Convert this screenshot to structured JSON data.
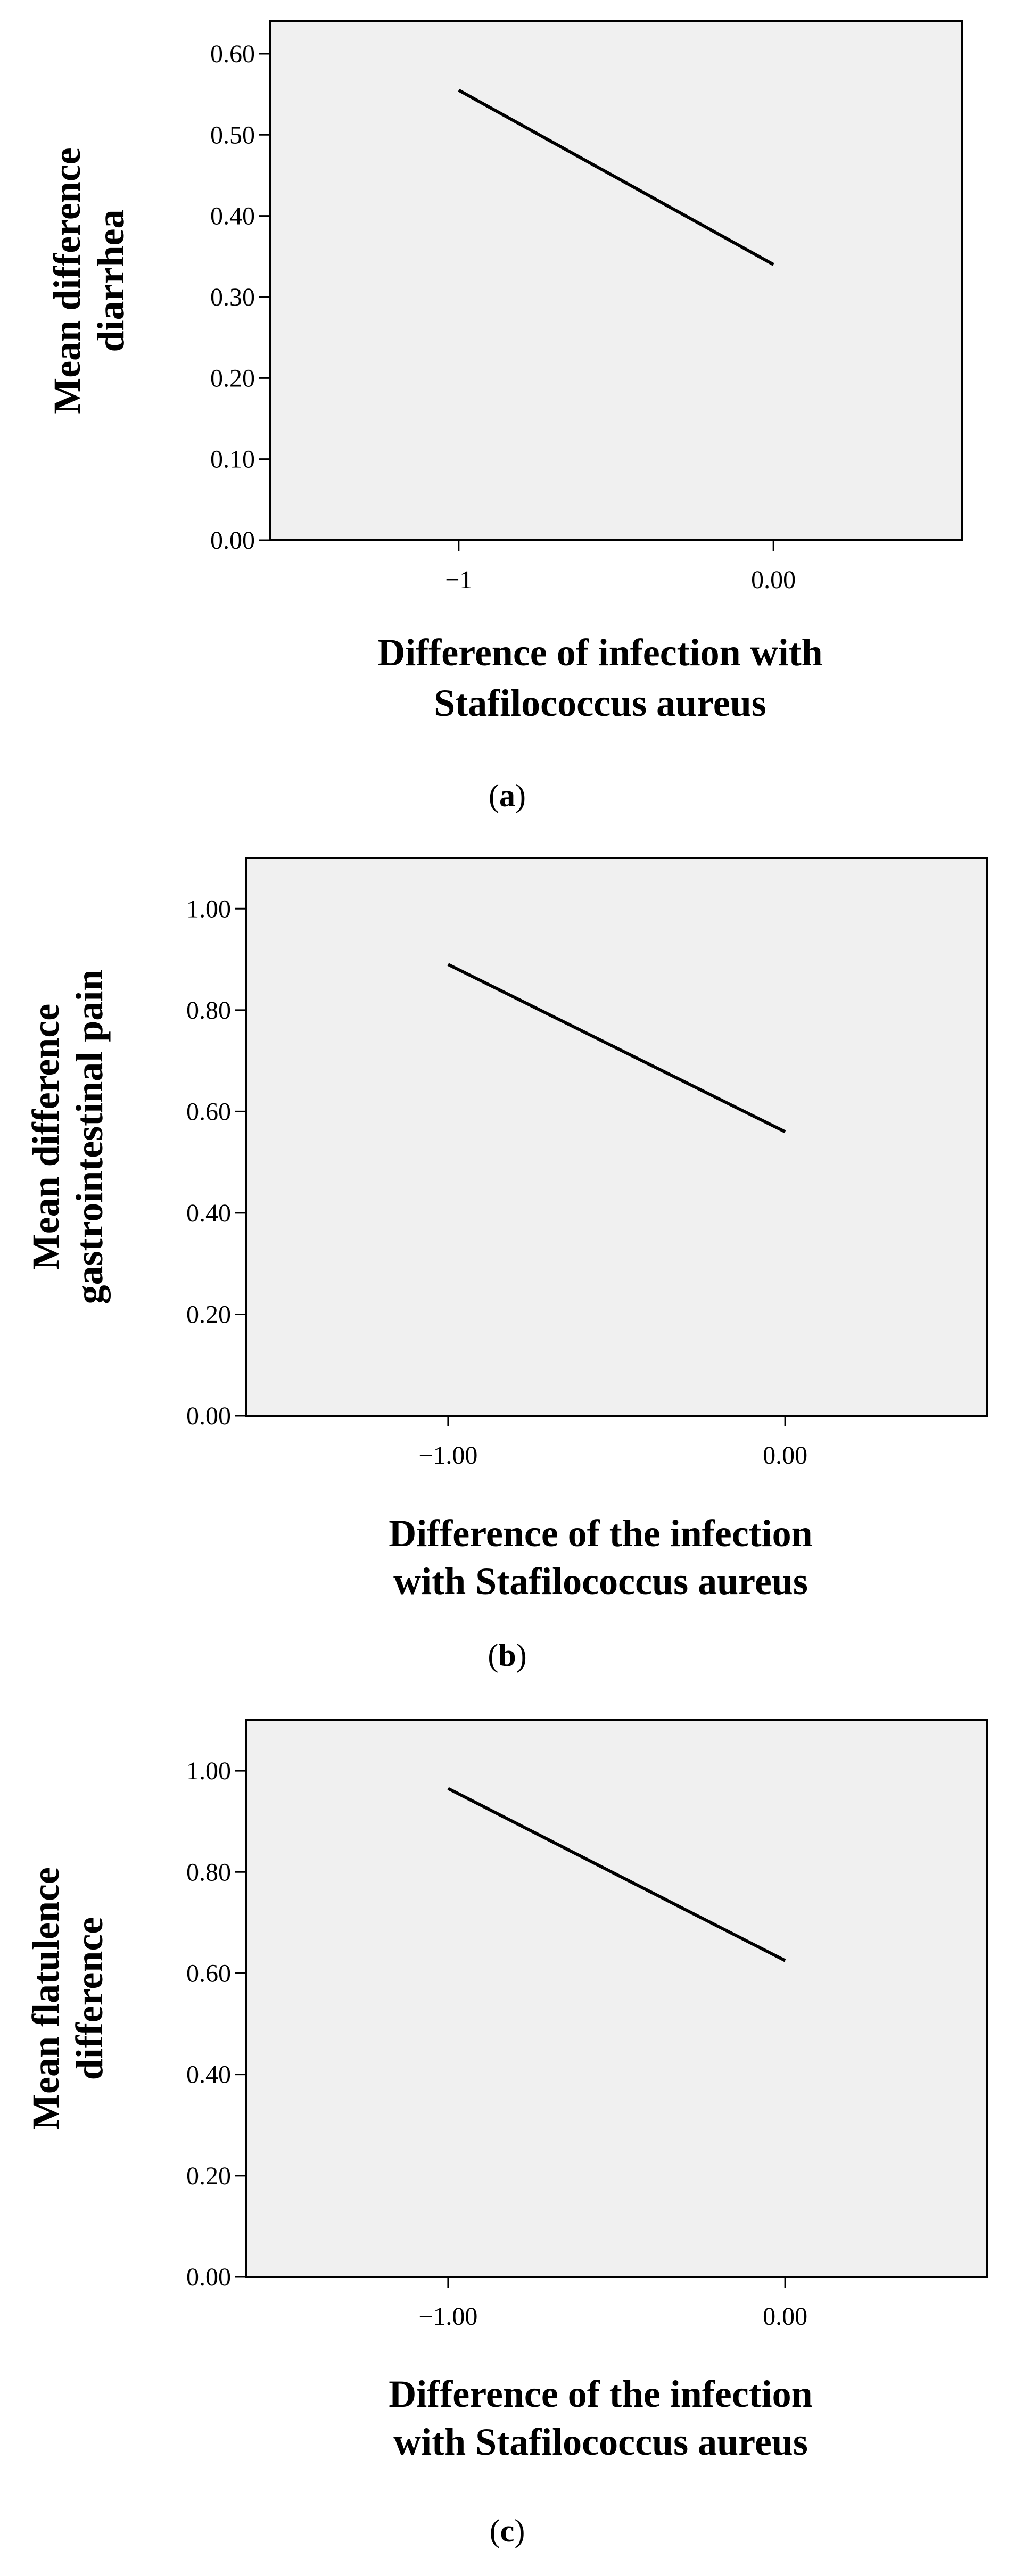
{
  "chart_data": [
    {
      "type": "line",
      "panel_label": "a",
      "x": [
        -1,
        0
      ],
      "x_tick_labels": [
        "−1",
        "0.00"
      ],
      "series": [
        {
          "values": [
            0.555,
            0.34
          ]
        }
      ],
      "xlim": [
        -1.6,
        0.6
      ],
      "ylim": [
        0,
        0.64
      ],
      "y_ticks": [
        0.0,
        0.1,
        0.2,
        0.3,
        0.4,
        0.5,
        0.6
      ],
      "y_tick_labels": [
        "0.00",
        "0.10",
        "0.20",
        "0.30",
        "0.40",
        "0.50",
        "0.60"
      ],
      "ylabel_lines": [
        "Mean difference",
        "diarrhea"
      ],
      "xlabel_lines": [
        "Difference of infection with",
        "Stafilococcus aureus"
      ],
      "grid": false,
      "background": "#f0f0f0",
      "line_color": "#000000"
    },
    {
      "type": "line",
      "panel_label": "b",
      "x": [
        -1,
        0
      ],
      "x_tick_labels": [
        "−1.00",
        "0.00"
      ],
      "series": [
        {
          "values": [
            0.89,
            0.56
          ]
        }
      ],
      "xlim": [
        -1.6,
        0.6
      ],
      "ylim": [
        0,
        1.1
      ],
      "y_ticks": [
        0.0,
        0.2,
        0.4,
        0.6,
        0.8,
        1.0
      ],
      "y_tick_labels": [
        "0.00",
        "0.20",
        "0.40",
        "0.60",
        "0.80",
        "1.00"
      ],
      "ylabel_lines": [
        "Mean difference",
        "gastrointestinal pain"
      ],
      "xlabel_lines": [
        "Difference of the infection",
        "with Stafilococcus aureus"
      ],
      "grid": false,
      "background": "#f0f0f0",
      "line_color": "#000000"
    },
    {
      "type": "line",
      "panel_label": "c",
      "x": [
        -1,
        0
      ],
      "x_tick_labels": [
        "−1.00",
        "0.00"
      ],
      "series": [
        {
          "values": [
            0.965,
            0.625
          ]
        }
      ],
      "xlim": [
        -1.6,
        0.6
      ],
      "ylim": [
        0,
        1.1
      ],
      "y_ticks": [
        0.0,
        0.2,
        0.4,
        0.6,
        0.8,
        1.0
      ],
      "y_tick_labels": [
        "0.00",
        "0.20",
        "0.40",
        "0.60",
        "0.80",
        "1.00"
      ],
      "ylabel_lines": [
        "Mean flatulence",
        "difference"
      ],
      "xlabel_lines": [
        "Difference of the infection",
        "with Stafilococcus aureus"
      ],
      "grid": false,
      "background": "#f0f0f0",
      "line_color": "#000000"
    }
  ]
}
